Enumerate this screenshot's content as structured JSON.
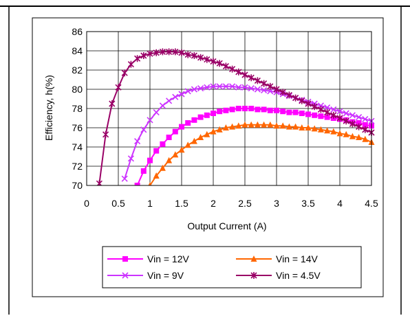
{
  "chart_data": {
    "type": "line",
    "xlabel": "Output Current (A)",
    "ylabel": "Efficiency, h(%)",
    "xlim": [
      0,
      4.5
    ],
    "ylim": [
      70,
      86
    ],
    "x_ticks": [
      0,
      0.5,
      1,
      1.5,
      2,
      2.5,
      3,
      3.5,
      4,
      4.5
    ],
    "x_tick_labels": [
      "0",
      "0.5",
      "1",
      "1.5",
      "2",
      "2.5",
      "3",
      "3.5",
      "4",
      "4.5"
    ],
    "y_ticks": [
      70,
      72,
      74,
      76,
      78,
      80,
      82,
      84,
      86
    ],
    "y_tick_labels": [
      "70",
      "72",
      "74",
      "76",
      "78",
      "80",
      "82",
      "84",
      "86"
    ],
    "grid": true,
    "legend_position": "bottom",
    "series": [
      {
        "name": "Vin = 12V",
        "color": "#FF00FF",
        "marker": "square",
        "x": [
          0.8,
          0.9,
          1.0,
          1.1,
          1.2,
          1.3,
          1.4,
          1.5,
          1.6,
          1.7,
          1.8,
          1.9,
          2.0,
          2.1,
          2.2,
          2.3,
          2.4,
          2.5,
          2.6,
          2.7,
          2.8,
          2.9,
          3.0,
          3.1,
          3.2,
          3.3,
          3.4,
          3.5,
          3.6,
          3.7,
          3.8,
          3.9,
          4.0,
          4.1,
          4.2,
          4.3,
          4.4,
          4.5
        ],
        "y": [
          70.0,
          71.5,
          72.6,
          73.6,
          74.3,
          75.0,
          75.6,
          76.1,
          76.5,
          76.8,
          77.1,
          77.3,
          77.5,
          77.7,
          77.8,
          77.9,
          78.0,
          78.0,
          78.0,
          77.9,
          77.9,
          77.8,
          77.8,
          77.7,
          77.6,
          77.6,
          77.5,
          77.4,
          77.3,
          77.2,
          77.1,
          77.0,
          76.9,
          76.8,
          76.6,
          76.5,
          76.3,
          76.2
        ]
      },
      {
        "name": "Vin = 14V",
        "color": "#FF6600",
        "marker": "triangle",
        "x": [
          1.0,
          1.1,
          1.2,
          1.3,
          1.4,
          1.5,
          1.6,
          1.7,
          1.8,
          1.9,
          2.0,
          2.1,
          2.2,
          2.3,
          2.4,
          2.5,
          2.6,
          2.7,
          2.8,
          2.9,
          3.0,
          3.1,
          3.2,
          3.3,
          3.4,
          3.5,
          3.6,
          3.7,
          3.8,
          3.9,
          4.0,
          4.1,
          4.2,
          4.3,
          4.4,
          4.5
        ],
        "y": [
          70.0,
          71.0,
          71.8,
          72.6,
          73.2,
          73.7,
          74.2,
          74.6,
          75.0,
          75.3,
          75.6,
          75.8,
          76.0,
          76.1,
          76.2,
          76.3,
          76.3,
          76.3,
          76.3,
          76.3,
          76.2,
          76.2,
          76.1,
          76.1,
          76.0,
          76.0,
          75.9,
          75.8,
          75.7,
          75.6,
          75.4,
          75.3,
          75.1,
          75.0,
          74.8,
          74.5
        ]
      },
      {
        "name": "Vin = 9V",
        "color": "#CC33FF",
        "marker": "x",
        "x": [
          0.6,
          0.7,
          0.8,
          0.9,
          1.0,
          1.1,
          1.2,
          1.3,
          1.4,
          1.5,
          1.6,
          1.7,
          1.8,
          1.9,
          2.0,
          2.1,
          2.2,
          2.3,
          2.4,
          2.5,
          2.6,
          2.7,
          2.8,
          2.9,
          3.0,
          3.1,
          3.2,
          3.3,
          3.4,
          3.5,
          3.6,
          3.7,
          3.8,
          3.9,
          4.0,
          4.1,
          4.2,
          4.3,
          4.4,
          4.5
        ],
        "y": [
          70.7,
          72.8,
          74.6,
          75.8,
          76.8,
          77.6,
          78.3,
          78.8,
          79.2,
          79.5,
          79.8,
          80.0,
          80.1,
          80.2,
          80.3,
          80.3,
          80.3,
          80.3,
          80.2,
          80.2,
          80.1,
          80.0,
          79.9,
          79.8,
          79.7,
          79.5,
          79.3,
          79.1,
          78.9,
          78.7,
          78.5,
          78.3,
          78.1,
          77.9,
          77.7,
          77.5,
          77.3,
          77.1,
          76.9,
          76.7
        ]
      },
      {
        "name": "Vin = 4.5V",
        "color": "#990066",
        "marker": "asterisk",
        "x": [
          0.2,
          0.3,
          0.4,
          0.5,
          0.6,
          0.7,
          0.8,
          0.9,
          1.0,
          1.1,
          1.2,
          1.3,
          1.4,
          1.5,
          1.6,
          1.7,
          1.8,
          1.9,
          2.0,
          2.1,
          2.2,
          2.3,
          2.4,
          2.5,
          2.6,
          2.7,
          2.8,
          2.9,
          3.0,
          3.1,
          3.2,
          3.3,
          3.4,
          3.5,
          3.6,
          3.7,
          3.8,
          3.9,
          4.0,
          4.1,
          4.2,
          4.3,
          4.4,
          4.5
        ],
        "y": [
          70.2,
          75.3,
          78.5,
          80.2,
          81.7,
          82.6,
          83.2,
          83.5,
          83.7,
          83.8,
          83.9,
          83.9,
          83.9,
          83.8,
          83.6,
          83.5,
          83.3,
          83.1,
          82.9,
          82.7,
          82.4,
          82.1,
          81.8,
          81.5,
          81.2,
          80.9,
          80.6,
          80.3,
          80.0,
          79.7,
          79.4,
          79.1,
          78.8,
          78.5,
          78.2,
          77.9,
          77.6,
          77.3,
          77.0,
          76.7,
          76.4,
          76.1,
          75.8,
          75.5
        ]
      }
    ]
  }
}
